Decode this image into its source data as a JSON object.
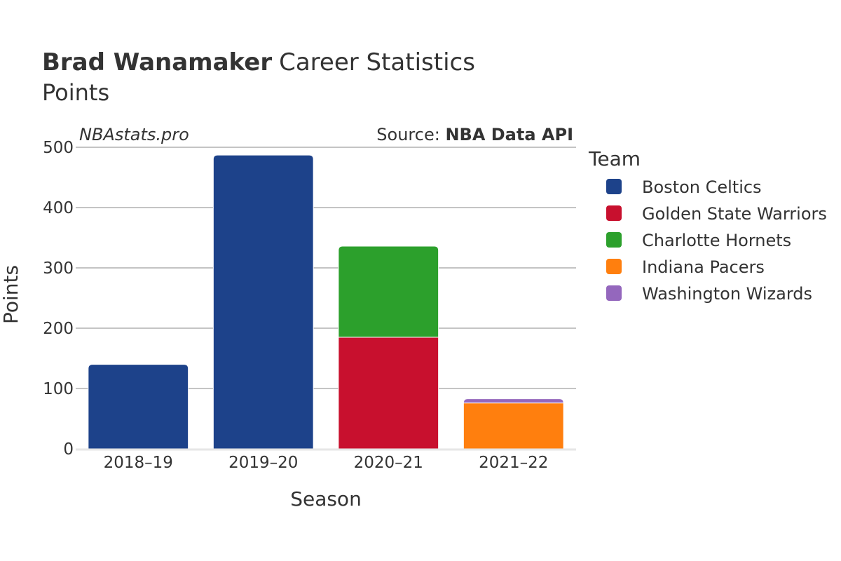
{
  "header": {
    "player_name": "Brad Wanamaker",
    "title_suffix": "Career Statistics",
    "subtitle": "Points"
  },
  "watermark": "NBAstats.pro",
  "source": {
    "label": "Source: ",
    "value": "NBA Data API"
  },
  "legend": {
    "title": "Team"
  },
  "chart_data": {
    "type": "bar",
    "stacked": true,
    "title": "Brad Wanamaker Career Statistics",
    "subtitle": "Points",
    "xlabel": "Season",
    "ylabel": "Points",
    "categories": [
      "2018–19",
      "2019–20",
      "2020–21",
      "2021–22"
    ],
    "ylim": [
      0,
      500
    ],
    "yticks": [
      0,
      100,
      200,
      300,
      400,
      500
    ],
    "grid": true,
    "legend_position": "right",
    "series": [
      {
        "name": "Boston Celtics",
        "color": "#1d428a",
        "values": [
          140,
          487,
          0,
          0
        ]
      },
      {
        "name": "Golden State Warriors",
        "color": "#c8102e",
        "values": [
          0,
          0,
          185,
          0
        ]
      },
      {
        "name": "Charlotte Hornets",
        "color": "#2ca02c",
        "values": [
          0,
          0,
          151,
          0
        ]
      },
      {
        "name": "Indiana Pacers",
        "color": "#ff7f0e",
        "values": [
          0,
          0,
          0,
          76
        ]
      },
      {
        "name": "Washington Wizards",
        "color": "#9467bd",
        "values": [
          0,
          0,
          0,
          7
        ]
      }
    ]
  }
}
